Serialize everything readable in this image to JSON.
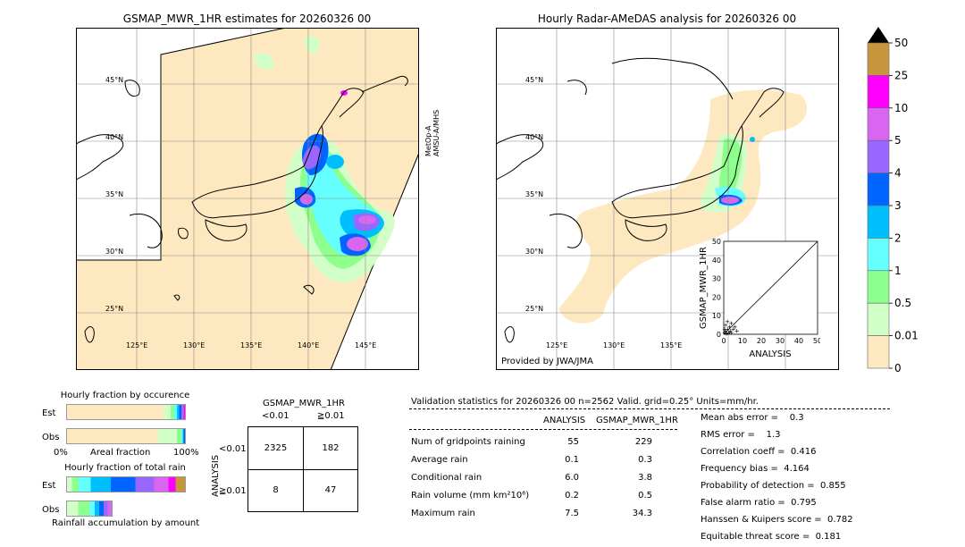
{
  "left_map": {
    "title": "GSMAP_MWR_1HR estimates for 20260326 00",
    "sensor_label": "MetOp-A\nAMSU-A/MHS",
    "lat_labels": [
      "45°N",
      "40°N",
      "35°N",
      "30°N",
      "25°N"
    ],
    "lon_labels": [
      "125°E",
      "130°E",
      "135°E",
      "140°E",
      "145°E"
    ]
  },
  "right_map": {
    "title": "Hourly Radar-AMeDAS analysis for 20260326 00",
    "credit": "Provided by JWA/JMA",
    "lat_labels": [
      "45°N",
      "40°N",
      "35°N",
      "30°N",
      "25°N"
    ],
    "lon_labels": [
      "125°E",
      "130°E",
      "135°E"
    ]
  },
  "colorbar": {
    "labels": [
      "50",
      "25",
      "10",
      "5",
      "4",
      "3",
      "2",
      "1",
      "0.5",
      "0.01",
      "0"
    ],
    "colors": [
      "#c8963c",
      "#ff00ff",
      "#d966f0",
      "#9966ff",
      "#0064ff",
      "#00bfff",
      "#66ffff",
      "#8cff8c",
      "#d2ffc8",
      "#fde8c0"
    ]
  },
  "occurrence": {
    "title": "Hourly fraction by occurence",
    "rows": [
      "Est",
      "Obs"
    ],
    "axis_left": "0%",
    "axis_mid": "Areal fraction",
    "axis_right": "100%"
  },
  "total_rain": {
    "title": "Hourly fraction of total rain",
    "rows": [
      "Est",
      "Obs"
    ],
    "footer": "Rainfall accumulation by amount"
  },
  "contingency": {
    "title": "GSMAP_MWR_1HR",
    "col_labels": [
      "<0.01",
      "≧0.01"
    ],
    "row_axis": "ANALYSIS",
    "row_labels": [
      "<0.01",
      "≧0.01"
    ],
    "cells": [
      [
        "2325",
        "182"
      ],
      [
        "8",
        "47"
      ]
    ]
  },
  "validation": {
    "header": "Validation statistics for 20260326 00  n=2562 Valid. grid=0.25° Units=mm/hr.",
    "col_analysis": "ANALYSIS",
    "col_gsmap": "GSMAP_MWR_1HR",
    "rows": [
      {
        "label": "Num of gridpoints raining",
        "analysis": "55",
        "gsmap": "229"
      },
      {
        "label": "Average rain",
        "analysis": "0.1",
        "gsmap": "0.3"
      },
      {
        "label": "Conditional rain",
        "analysis": "6.0",
        "gsmap": "3.8"
      },
      {
        "label": "Rain volume (mm km²10⁶)",
        "analysis": "0.2",
        "gsmap": "0.5"
      },
      {
        "label": "Maximum rain",
        "analysis": "7.5",
        "gsmap": "34.3"
      }
    ],
    "scores": [
      "Mean abs error =    0.3",
      "RMS error =    1.3",
      "Correlation coeff =  0.416",
      "Frequency bias =  4.164",
      "Probability of detection =  0.855",
      "False alarm ratio =  0.795",
      "Hanssen & Kuipers score =  0.782",
      "Equitable threat score =  0.181"
    ]
  },
  "chart_data": {
    "type": "scatter",
    "xlabel": "ANALYSIS",
    "ylabel": "GSMAP_MWR_1HR",
    "xlim": [
      0,
      50
    ],
    "ylim": [
      0,
      50
    ],
    "ticks": [
      "0",
      "10",
      "20",
      "30",
      "40",
      "50"
    ],
    "points": [
      [
        0.5,
        1
      ],
      [
        1,
        2
      ],
      [
        1.5,
        0.5
      ],
      [
        2,
        3
      ],
      [
        2.5,
        1
      ],
      [
        3,
        4
      ],
      [
        3.5,
        2
      ],
      [
        4,
        6
      ],
      [
        1,
        5
      ],
      [
        2,
        7
      ],
      [
        5,
        3
      ],
      [
        6,
        4
      ],
      [
        0.5,
        3
      ],
      [
        3,
        1
      ],
      [
        7,
        2
      ],
      [
        4,
        1
      ]
    ],
    "diagonal": true
  }
}
